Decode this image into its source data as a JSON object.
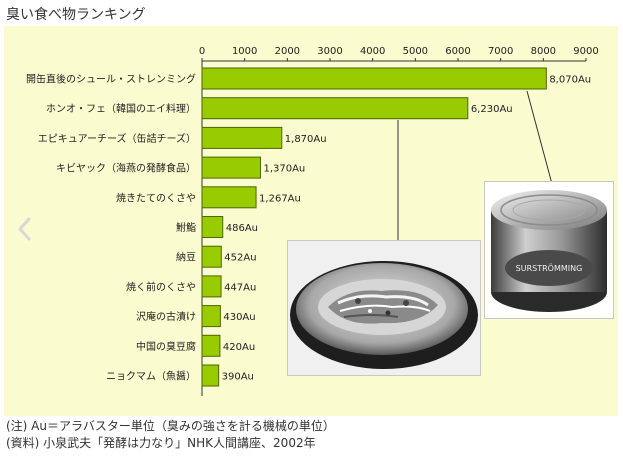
{
  "title": "臭い食べ物ランキング",
  "chart_data": {
    "type": "bar",
    "orientation": "horizontal",
    "xlim": [
      0,
      9000
    ],
    "x_ticks": [
      "0",
      "1000",
      "2000",
      "3000",
      "4000",
      "5000",
      "6000",
      "7000",
      "8000",
      "9000"
    ],
    "categories": [
      "開缶直後のシュール・ストレンミング",
      "ホンオ・フェ（韓国のエイ料理）",
      "エピキュアーチーズ（缶詰チーズ）",
      "キビヤック（海燕の発酵食品）",
      "焼きたてのくさや",
      "鮒鮨",
      "納豆",
      "焼く前のくさや",
      "沢庵の古漬け",
      "中国の臭豆腐",
      "ニョクマム（魚醤）"
    ],
    "values": [
      8070,
      6230,
      1870,
      1370,
      1267,
      486,
      452,
      447,
      430,
      420,
      390
    ],
    "value_labels": [
      "8,070Au",
      "6,230Au",
      "1,870Au",
      "1,370Au",
      "1,267Au",
      "486Au",
      "452Au",
      "447Au",
      "430Au",
      "420Au",
      "390Au"
    ],
    "bar_color": "#99cc00",
    "bar_border_color": "#4d6600",
    "background_color": "#fbfbd0",
    "grid": false,
    "legend": "none"
  },
  "photos": {
    "dish_icon": "fermented-fish-dish-photo",
    "can_icon": "surstromming-can-photo",
    "can_text": "SURSTRÖMMING"
  },
  "notes": {
    "line1": "(注) Au＝アラバスター単位（臭みの強さを計る機械の単位）",
    "line2": "(資料) 小泉武夫「発酵は力なり」NHK人間講座、2002年"
  },
  "nav": {
    "prev_icon": "chevron-left-icon"
  }
}
